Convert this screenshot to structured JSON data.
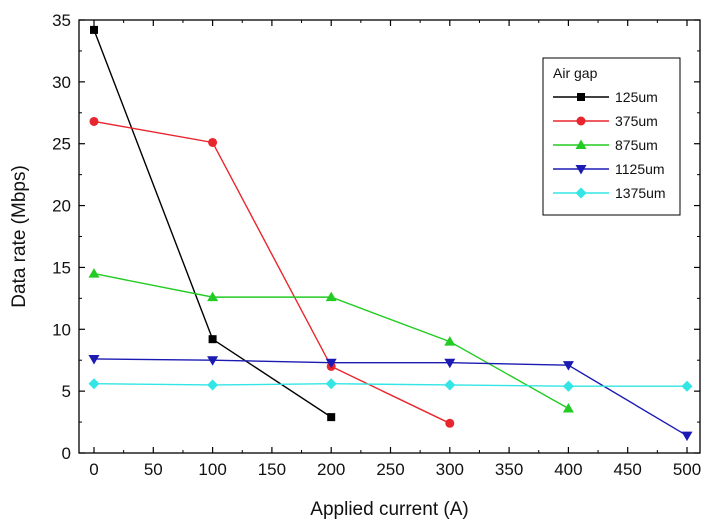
{
  "chart_data": {
    "type": "line",
    "title": "",
    "xlabel": "Applied current (A)",
    "ylabel": "Data rate (Mbps)",
    "xlim": [
      0,
      500
    ],
    "ylim": [
      0,
      35
    ],
    "xticks": [
      0,
      50,
      100,
      150,
      200,
      250,
      300,
      350,
      400,
      450,
      500
    ],
    "yticks": [
      0,
      5,
      10,
      15,
      20,
      25,
      30,
      35
    ],
    "grid": false,
    "legend": {
      "title": "Air gap",
      "placement": "top-right"
    },
    "series": [
      {
        "name": "125um",
        "color": "#000000",
        "marker": "square",
        "x": [
          0,
          100,
          200
        ],
        "y": [
          34.2,
          9.2,
          2.9
        ]
      },
      {
        "name": "375um",
        "color": "#e8262d",
        "marker": "circle",
        "x": [
          0,
          100,
          200,
          300
        ],
        "y": [
          26.8,
          25.1,
          7.0,
          2.4
        ]
      },
      {
        "name": "875um",
        "color": "#22cc22",
        "marker": "triangle-up",
        "x": [
          0,
          100,
          200,
          300,
          400
        ],
        "y": [
          14.5,
          12.6,
          12.6,
          9.0,
          3.6
        ]
      },
      {
        "name": "1125um",
        "color": "#1b1bb3",
        "marker": "triangle-down",
        "x": [
          0,
          100,
          200,
          300,
          400,
          500
        ],
        "y": [
          7.6,
          7.5,
          7.3,
          7.3,
          7.1,
          1.4
        ]
      },
      {
        "name": "1375um",
        "color": "#33e5e5",
        "marker": "diamond",
        "x": [
          0,
          100,
          200,
          300,
          400,
          500
        ],
        "y": [
          5.6,
          5.5,
          5.6,
          5.5,
          5.4,
          5.4
        ]
      }
    ]
  }
}
